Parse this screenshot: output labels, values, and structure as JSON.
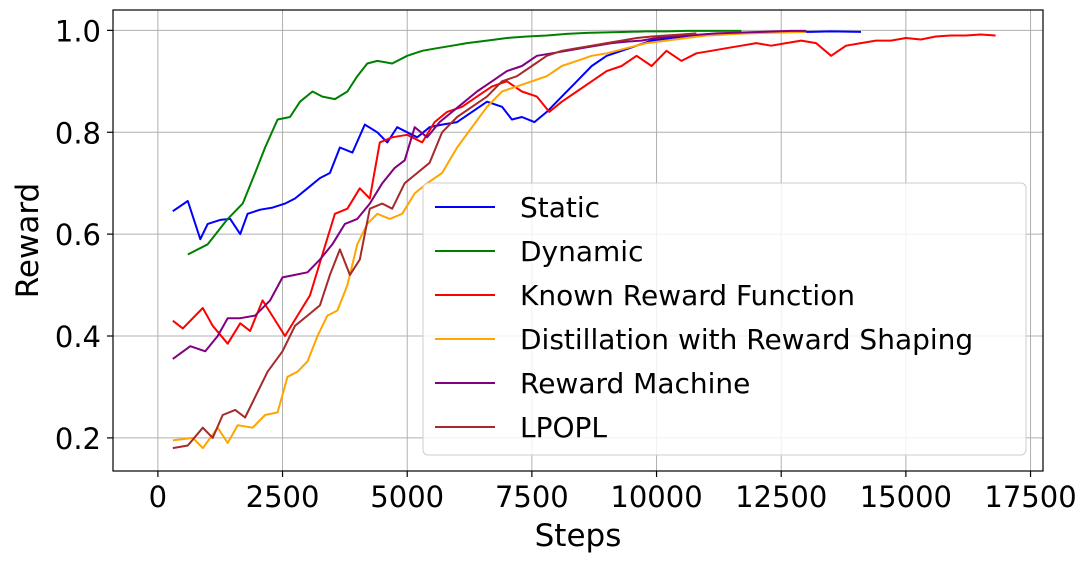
{
  "chart_data": {
    "type": "line",
    "title": "",
    "xlabel": "Steps",
    "ylabel": "Reward",
    "xlim": [
      -900,
      17750
    ],
    "ylim": [
      0.135,
      1.04
    ],
    "xticks": [
      0,
      2500,
      5000,
      7500,
      10000,
      12500,
      15000,
      17500
    ],
    "xtick_labels": [
      "0",
      "2500",
      "5000",
      "7500",
      "10000",
      "12500",
      "15000",
      "17500"
    ],
    "yticks": [
      0.2,
      0.4,
      0.6,
      0.8,
      1.0
    ],
    "ytick_labels": [
      "0.2",
      "0.4",
      "0.6",
      "0.8",
      "1.0"
    ],
    "grid": true,
    "legend_position": "center-right",
    "series": [
      {
        "name": "Static",
        "color": "#0000ff",
        "x": [
          300,
          600,
          850,
          1000,
          1250,
          1450,
          1650,
          1800,
          2050,
          2300,
          2550,
          2750,
          3000,
          3250,
          3450,
          3650,
          3900,
          4150,
          4400,
          4600,
          4800,
          5000,
          5200,
          5450,
          5700,
          6000,
          6300,
          6600,
          6900,
          7100,
          7300,
          7550,
          7800,
          8100,
          8400,
          8700,
          9000,
          9300,
          9600,
          9900,
          10300,
          10700,
          11100,
          11500,
          11900,
          12300,
          12700,
          13100,
          13500,
          14100
        ],
        "y": [
          0.645,
          0.665,
          0.59,
          0.62,
          0.628,
          0.63,
          0.6,
          0.64,
          0.648,
          0.652,
          0.66,
          0.67,
          0.69,
          0.71,
          0.72,
          0.77,
          0.76,
          0.815,
          0.8,
          0.78,
          0.81,
          0.8,
          0.79,
          0.81,
          0.815,
          0.82,
          0.84,
          0.86,
          0.85,
          0.825,
          0.83,
          0.82,
          0.84,
          0.87,
          0.9,
          0.93,
          0.95,
          0.96,
          0.97,
          0.98,
          0.985,
          0.99,
          0.992,
          0.994,
          0.995,
          0.996,
          0.997,
          0.997,
          0.998,
          0.997
        ]
      },
      {
        "name": "Dynamic",
        "color": "#008000",
        "x": [
          600,
          1000,
          1400,
          1700,
          1950,
          2150,
          2400,
          2650,
          2850,
          3100,
          3300,
          3550,
          3800,
          4000,
          4200,
          4400,
          4700,
          5000,
          5300,
          5600,
          5900,
          6200,
          6600,
          7000,
          7400,
          7800,
          8200,
          8600,
          9000,
          9400,
          9800,
          10200,
          10600,
          11000,
          11400,
          11700
        ],
        "y": [
          0.56,
          0.58,
          0.63,
          0.66,
          0.72,
          0.77,
          0.825,
          0.83,
          0.86,
          0.88,
          0.87,
          0.865,
          0.88,
          0.91,
          0.935,
          0.94,
          0.935,
          0.95,
          0.96,
          0.965,
          0.97,
          0.975,
          0.98,
          0.985,
          0.988,
          0.99,
          0.993,
          0.995,
          0.996,
          0.997,
          0.998,
          0.998,
          0.999,
          0.999,
          0.999,
          0.999
        ]
      },
      {
        "name": "Known Reward Function",
        "color": "#ff0000",
        "x": [
          300,
          500,
          900,
          1100,
          1400,
          1650,
          1850,
          2100,
          2550,
          2800,
          3050,
          3300,
          3550,
          3800,
          4050,
          4250,
          4450,
          4700,
          5000,
          5300,
          5550,
          5800,
          6100,
          6400,
          6700,
          7000,
          7300,
          7600,
          7850,
          8100,
          8400,
          8700,
          9000,
          9300,
          9600,
          9900,
          10200,
          10500,
          10800,
          11100,
          11400,
          11700,
          12000,
          12300,
          12600,
          12900,
          13200,
          13500,
          13800,
          14100,
          14400,
          14700,
          15000,
          15300,
          15600,
          15900,
          16200,
          16500,
          16800
        ],
        "y": [
          0.43,
          0.415,
          0.455,
          0.42,
          0.385,
          0.425,
          0.41,
          0.47,
          0.4,
          0.44,
          0.48,
          0.56,
          0.64,
          0.65,
          0.69,
          0.67,
          0.78,
          0.79,
          0.795,
          0.78,
          0.82,
          0.84,
          0.85,
          0.87,
          0.89,
          0.9,
          0.88,
          0.87,
          0.84,
          0.86,
          0.88,
          0.9,
          0.92,
          0.93,
          0.95,
          0.93,
          0.96,
          0.94,
          0.955,
          0.96,
          0.965,
          0.97,
          0.975,
          0.97,
          0.975,
          0.98,
          0.975,
          0.95,
          0.97,
          0.975,
          0.98,
          0.98,
          0.985,
          0.982,
          0.988,
          0.99,
          0.99,
          0.992,
          0.99
        ]
      },
      {
        "name": "Distillation with Reward Shaping",
        "color": "#ffa500",
        "x": [
          300,
          700,
          900,
          1200,
          1400,
          1600,
          1900,
          2150,
          2400,
          2600,
          2800,
          3000,
          3200,
          3400,
          3600,
          3800,
          4000,
          4200,
          4400,
          4650,
          4900,
          5150,
          5400,
          5700,
          6000,
          6300,
          6600,
          6900,
          7200,
          7500,
          7800,
          8100,
          8400,
          8700,
          9000,
          9400,
          9800,
          10200,
          10600,
          11000,
          11400,
          11800,
          12200,
          12600,
          13000
        ],
        "y": [
          0.195,
          0.2,
          0.18,
          0.22,
          0.19,
          0.225,
          0.22,
          0.245,
          0.25,
          0.32,
          0.33,
          0.35,
          0.4,
          0.44,
          0.45,
          0.5,
          0.58,
          0.62,
          0.64,
          0.63,
          0.64,
          0.68,
          0.7,
          0.72,
          0.77,
          0.81,
          0.85,
          0.88,
          0.89,
          0.9,
          0.91,
          0.93,
          0.94,
          0.95,
          0.955,
          0.965,
          0.975,
          0.98,
          0.985,
          0.99,
          0.992,
          0.994,
          0.995,
          0.996,
          0.997
        ]
      },
      {
        "name": "Reward Machine",
        "color": "#800080",
        "x": [
          300,
          650,
          950,
          1200,
          1400,
          1650,
          1950,
          2250,
          2500,
          2750,
          3000,
          3250,
          3500,
          3750,
          4000,
          4250,
          4500,
          4750,
          4950,
          5150,
          5400,
          5650,
          5900,
          6150,
          6400,
          6700,
          7000,
          7300,
          7600,
          7900,
          8200,
          8500,
          8800,
          9100,
          9400,
          9700,
          10000,
          10300,
          10600,
          10900,
          11200,
          11500,
          11800,
          12100,
          12400,
          12700,
          13000
        ],
        "y": [
          0.355,
          0.38,
          0.37,
          0.4,
          0.435,
          0.435,
          0.44,
          0.47,
          0.515,
          0.52,
          0.525,
          0.55,
          0.58,
          0.62,
          0.63,
          0.66,
          0.7,
          0.73,
          0.745,
          0.81,
          0.79,
          0.82,
          0.84,
          0.86,
          0.88,
          0.9,
          0.92,
          0.93,
          0.95,
          0.955,
          0.96,
          0.965,
          0.97,
          0.975,
          0.978,
          0.98,
          0.985,
          0.988,
          0.99,
          0.992,
          0.994,
          0.995,
          0.996,
          0.997,
          0.998,
          0.999,
          0.999
        ]
      },
      {
        "name": "LPOPL",
        "color": "#a52a2a",
        "x": [
          300,
          600,
          900,
          1100,
          1300,
          1550,
          1750,
          1950,
          2200,
          2500,
          2750,
          3000,
          3250,
          3450,
          3650,
          3850,
          4050,
          4250,
          4500,
          4700,
          4950,
          5200,
          5450,
          5700,
          6000,
          6300,
          6600,
          6900,
          7200,
          7500,
          7800,
          8100,
          8400,
          8700,
          9000,
          9300,
          9600,
          9900,
          10200,
          10500,
          10800
        ],
        "y": [
          0.18,
          0.185,
          0.22,
          0.2,
          0.245,
          0.255,
          0.24,
          0.28,
          0.33,
          0.37,
          0.42,
          0.44,
          0.46,
          0.52,
          0.57,
          0.52,
          0.55,
          0.65,
          0.66,
          0.65,
          0.7,
          0.72,
          0.74,
          0.8,
          0.83,
          0.85,
          0.87,
          0.9,
          0.91,
          0.93,
          0.95,
          0.96,
          0.965,
          0.97,
          0.975,
          0.98,
          0.985,
          0.988,
          0.99,
          0.992,
          0.994
        ]
      }
    ]
  }
}
